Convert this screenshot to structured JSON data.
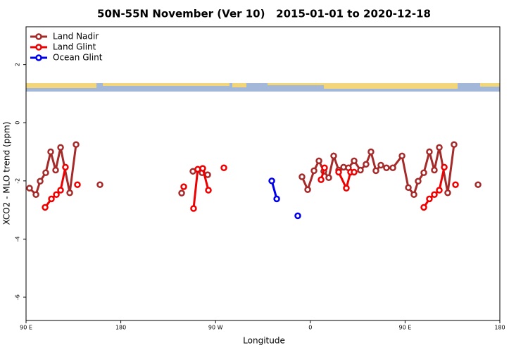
{
  "chart_data": {
    "type": "line",
    "title": "50N-55N November (Ver 10)   2015-01-01 to 2020-12-18",
    "x_label": "Longitude",
    "y_label": "XCO2 - MLO trend (ppm)",
    "xlim": [
      90,
      540
    ],
    "xticks": [
      {
        "value": 90,
        "label": "90 E"
      },
      {
        "value": 180,
        "label": "180"
      },
      {
        "value": 270,
        "label": "90 W"
      },
      {
        "value": 360,
        "label": "0"
      },
      {
        "value": 450,
        "label": "90 E"
      },
      {
        "value": 540,
        "label": "180"
      }
    ],
    "ylim": [
      -6.8,
      3.3
    ],
    "yticks": [
      2,
      0,
      -2,
      -4,
      -6
    ],
    "legend": "top-left",
    "series": [
      {
        "name": "Land Nadir",
        "color": "#a52a2a",
        "x": [
          93.3,
          99.4,
          103.4,
          108.7,
          113.4,
          118.1,
          122.8,
          131.5,
          137.5,
          null,
          160.2,
          null,
          237.8,
          null,
          248.5,
          254.5,
          257.2,
          262.5,
          null,
          352.1,
          357.5,
          363.5,
          368.2,
          372.8,
          377.5,
          382.2,
          386.9,
          391.6,
          396.2,
          401.6,
          407.6,
          412.9,
          417.6,
          422.3,
          427.0,
          432.3,
          438.4,
          447.1,
          453.1,
          458.4,
          462.4,
          467.8,
          473.1,
          477.8,
          482.5,
          490.5,
          496.5,
          null,
          519.3
        ],
        "values": [
          -2.25,
          -2.47,
          -2.01,
          -1.72,
          -1.0,
          -1.63,
          -0.85,
          -2.41,
          -0.75,
          null,
          -2.13,
          null,
          -2.42,
          null,
          -1.67,
          -1.62,
          -1.72,
          -1.79,
          null,
          -1.86,
          -2.3,
          -1.65,
          -1.31,
          -1.67,
          -1.89,
          -1.14,
          -1.63,
          -1.53,
          -1.55,
          -1.31,
          -1.63,
          -1.43,
          -1.0,
          -1.65,
          -1.46,
          -1.55,
          -1.55,
          -1.14,
          -2.23,
          -2.47,
          -2.01,
          -1.72,
          -1.0,
          -1.63,
          -0.85,
          -2.41,
          -0.75,
          null,
          -2.13
        ]
      },
      {
        "name": "Land Glint",
        "color": "#ee0000",
        "x": [
          108.1,
          114.1,
          118.8,
          122.8,
          127.4,
          null,
          138.8,
          null,
          239.8,
          null,
          249.1,
          253.1,
          257.8,
          263.2,
          null,
          277.9,
          null,
          370.2,
          373.5,
          null,
          386.9,
          394.2,
          398.2,
          401.6,
          null,
          467.8,
          473.1,
          477.8,
          482.5,
          487.2,
          null,
          497.9
        ],
        "values": [
          -2.91,
          -2.62,
          -2.47,
          -2.32,
          -1.53,
          null,
          -2.13,
          null,
          -2.2,
          null,
          -2.95,
          -1.6,
          -1.57,
          -2.32,
          null,
          -1.55,
          null,
          -1.96,
          -1.55,
          null,
          -1.7,
          -2.25,
          -1.7,
          -1.7,
          null,
          -2.91,
          -2.62,
          -2.47,
          -2.32,
          -1.53,
          null,
          -2.13
        ]
      },
      {
        "name": "Ocean Glint",
        "color": "#0000ee",
        "x": [
          323.4,
          328.1,
          null,
          348.1
        ],
        "values": [
          -2.0,
          -2.62,
          null,
          -3.2
        ]
      }
    ]
  }
}
